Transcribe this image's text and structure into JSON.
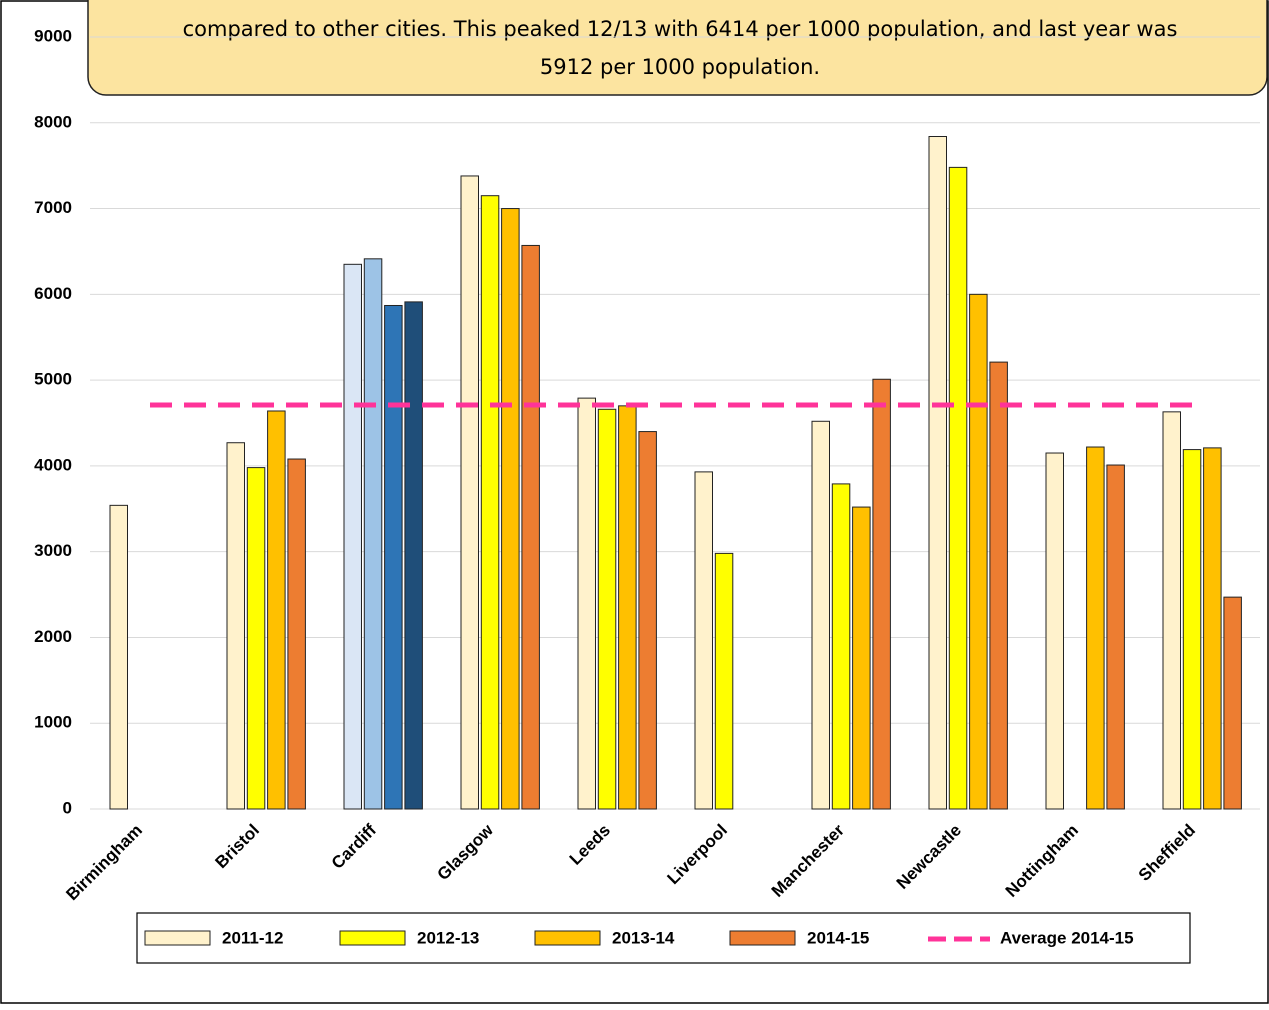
{
  "chart_data": {
    "type": "bar",
    "annotation": [
      "compared to other cities. This peaked 12/13 with 6414 per 1000 population, and last year was",
      "5912 per 1000 population."
    ],
    "categories": [
      "Birmingham",
      "Bristol",
      "Cardiff",
      "Glasgow",
      "Leeds",
      "Liverpool",
      "Manchester",
      "Newcastle",
      "Nottingham",
      "Sheffield"
    ],
    "series": [
      {
        "name": "2011-12",
        "color": "#fff2cc",
        "values": [
          3540,
          4270,
          6350,
          7380,
          4790,
          3930,
          4520,
          7840,
          4150,
          4630
        ]
      },
      {
        "name": "2012-13",
        "color": "#ffff00",
        "values": [
          null,
          3980,
          6414,
          7150,
          4660,
          2980,
          3790,
          7480,
          null,
          4190
        ]
      },
      {
        "name": "2013-14",
        "color": "#ffc000",
        "values": [
          null,
          4640,
          5870,
          7000,
          4700,
          null,
          3520,
          6000,
          4220,
          4210
        ]
      },
      {
        "name": "2014-15",
        "color": "#ed7d31",
        "values": [
          null,
          4080,
          5912,
          6570,
          4400,
          null,
          5010,
          5210,
          4010,
          2470
        ]
      }
    ],
    "highlight_index": 2,
    "highlight_colors": [
      "#dae6f5",
      "#9dc3e6",
      "#2e75b6",
      "#1f4e79"
    ],
    "average": {
      "name": "Average 2014-15",
      "value": 4710,
      "color": "#ff3399"
    },
    "ylim": [
      0,
      9000
    ],
    "yticks": [
      0,
      1000,
      2000,
      3000,
      4000,
      5000,
      6000,
      7000,
      8000,
      9000
    ],
    "grid": true
  }
}
